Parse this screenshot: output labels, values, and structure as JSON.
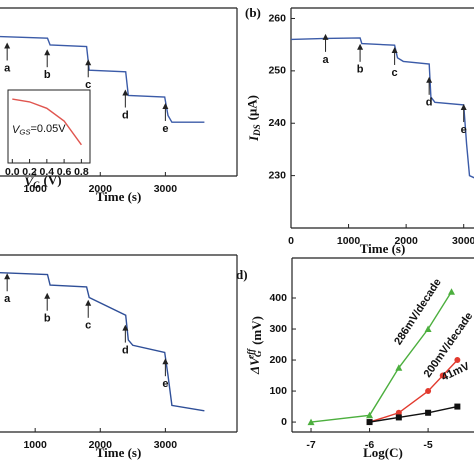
{
  "chart_data": [
    {
      "type": "line",
      "xlim": [
        460,
        4100
      ],
      "ylim": [
        0,
        100
      ],
      "xticks": [
        1000,
        2000,
        3000
      ],
      "xlabel": "Time (s)",
      "series": [
        {
          "color": "#3b5ba8",
          "x": [
            460,
            1190,
            1230,
            1790,
            1830,
            2390,
            2430,
            2990,
            3040,
            3100,
            3600
          ],
          "values": [
            83,
            82,
            78,
            77,
            63,
            62,
            48,
            47,
            36,
            32,
            32
          ]
        }
      ],
      "annotations": [
        {
          "text": "a",
          "x": 570,
          "y": 64
        },
        {
          "text": "b",
          "x": 1185,
          "y": 60
        },
        {
          "text": "c",
          "x": 1815,
          "y": 54
        },
        {
          "text": "d",
          "x": 2385,
          "y": 36
        },
        {
          "text": "e",
          "x": 3000,
          "y": 28
        }
      ]
    },
    {
      "type": "line",
      "xlim": [
        -0.05,
        0.9
      ],
      "ylim": [
        0.3,
        1.1
      ],
      "xticks": [
        {
          "value": 0,
          "label": "0.0"
        },
        0.2,
        0.4,
        0.6,
        0.8
      ],
      "xlabel": {
        "symbol": "V",
        "subscript": "G",
        "unit": "(V)"
      },
      "note": {
        "symbol": "V",
        "subscript": "GS",
        "rest": "=0.05V"
      },
      "series": [
        {
          "color": "#e0554f",
          "x": [
            0,
            0.2,
            0.4,
            0.6,
            0.8
          ],
          "values": [
            1.0,
            0.97,
            0.9,
            0.76,
            0.5
          ]
        }
      ]
    },
    {
      "type": "line",
      "panel_label": "(b)",
      "xlim": [
        0,
        3700
      ],
      "ylim": [
        220,
        262
      ],
      "xticks": [
        0,
        1000,
        2000,
        3000
      ],
      "yticks": [
        230,
        240,
        250,
        260
      ],
      "xlabel": "Time (s)",
      "ylabel": {
        "symbol": "I",
        "subscript": "DS",
        "unit": "(μA)"
      },
      "series": [
        {
          "color": "#3b5ba8",
          "x": [
            0,
            600,
            1200,
            1230,
            1800,
            1850,
            1950,
            2400,
            2430,
            2500,
            3000,
            3050,
            3100,
            3300
          ],
          "values": [
            256,
            256.2,
            256.3,
            255.2,
            254.9,
            252.5,
            251.8,
            251.3,
            245,
            244,
            243.5,
            236,
            230,
            229
          ]
        }
      ],
      "annotations": [
        {
          "text": "a",
          "x": 600,
          "y": 252.1
        },
        {
          "text": "b",
          "x": 1200,
          "y": 250.2
        },
        {
          "text": "c",
          "x": 1800,
          "y": 249.6
        },
        {
          "text": "d",
          "x": 2400,
          "y": 243.9
        },
        {
          "text": "e",
          "x": 3000,
          "y": 238.7
        }
      ]
    },
    {
      "type": "line",
      "xlim": [
        460,
        4100
      ],
      "ylim": [
        0,
        100
      ],
      "xticks": [
        1000,
        2000,
        3000
      ],
      "xlabel": "Time (s)",
      "series": [
        {
          "color": "#2f4f98",
          "x": [
            460,
            1190,
            1230,
            1790,
            1830,
            2390,
            2430,
            2500,
            2990,
            3040,
            3100,
            3600
          ],
          "values": [
            90,
            89,
            83,
            82,
            76,
            66,
            52,
            49,
            45,
            32,
            15,
            12
          ]
        }
      ],
      "annotations": [
        {
          "text": "a",
          "x": 570,
          "y": 75
        },
        {
          "text": "b",
          "x": 1185,
          "y": 64
        },
        {
          "text": "c",
          "x": 1815,
          "y": 60
        },
        {
          "text": "d",
          "x": 2385,
          "y": 46
        },
        {
          "text": "e",
          "x": 3000,
          "y": 27
        }
      ]
    },
    {
      "type": "line",
      "panel_label": "d)",
      "xlim": [
        -7.325,
        -3.43
      ],
      "ylim": [
        -32,
        529
      ],
      "xticks": [
        -7,
        -6,
        -5
      ],
      "yticks": [
        0,
        100,
        200,
        300,
        400
      ],
      "xlabel": "Log(C)",
      "ylabel": {
        "symbol": "ΔV",
        "subscript": "G",
        "superscript": "eff",
        "unit": "(mV)"
      },
      "series": [
        {
          "color": "#4caf3e",
          "marker": "triangle",
          "x": [
            -7,
            -6,
            -5.5,
            -5,
            -4.6
          ],
          "values": [
            0,
            22,
            175,
            300,
            420
          ]
        },
        {
          "color": "#e23a2e",
          "marker": "circle",
          "x": [
            -6,
            -5.5,
            -5,
            -4.75,
            -4.5
          ],
          "values": [
            0,
            30,
            100,
            150,
            200
          ]
        },
        {
          "color": "#111111",
          "marker": "square",
          "x": [
            -6,
            -5.5,
            -5,
            -4.5
          ],
          "values": [
            0,
            15,
            30,
            50
          ]
        }
      ],
      "annotations": [
        {
          "text": "286mV/decade",
          "x": -5.17,
          "y": 355
        },
        {
          "text": "200mV/decade",
          "x": -4.65,
          "y": 248
        },
        {
          "text": "41mV",
          "x": -4.53,
          "y": 161
        }
      ]
    }
  ]
}
